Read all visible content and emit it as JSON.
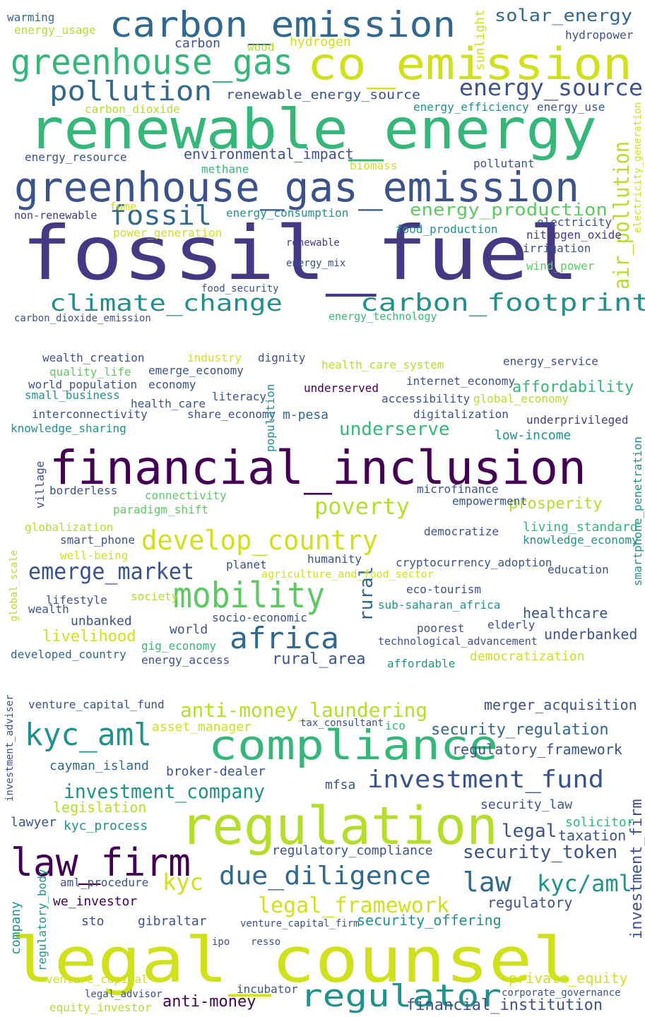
{
  "panels": [
    {
      "words": [
        "carbon_emission",
        "greenhouse_gas",
        "co_emission",
        "pollution",
        "energy_source",
        "renewable_energy",
        "greenhouse_gas_emission",
        "fossil",
        "energy_production",
        "fossil_fuel",
        "climate_change",
        "carbon_footprint",
        "air_pollution",
        "solar_energy",
        "renewable_energy_source",
        "energy_resource",
        "environmental_impact",
        "energy_consumption",
        "methane",
        "power_generation",
        "non-renewable",
        "energy_efficiency",
        "energy_use",
        "hydropower",
        "energy_usage",
        "warming",
        "hydrogen",
        "carbon",
        "carbon_dioxide",
        "biomass",
        "pollutant",
        "electricity",
        "nitrogen_oxide",
        "irrigation",
        "wind_power",
        "food_production",
        "renewable",
        "energy_mix",
        "food_security",
        "carbon_dioxide_emission",
        "energy_technology",
        "fume",
        "wood",
        "sunlight",
        "electricity_generation"
      ]
    },
    {
      "words": [
        "financial_inclusion",
        "develop_country",
        "mobility",
        "emerge_market",
        "africa",
        "poverty",
        "prosperity",
        "affordability",
        "underserve",
        "rural_area",
        "rural",
        "livelihood",
        "unbanked",
        "underbanked",
        "healthcare",
        "developed_country",
        "energy_access",
        "gig_economy",
        "democratization",
        "affordable",
        "technological_advancement",
        "cryptocurrency_adoption",
        "living_standard",
        "knowledge_economy",
        "wealth_creation",
        "quality_life",
        "world_population",
        "economy",
        "small_business",
        "interconnectivity",
        "health_care",
        "share_economy",
        "knowledge_sharing",
        "emerge_economy",
        "industry",
        "dignity",
        "health_care_system",
        "internet_economy",
        "energy_service",
        "global_economy",
        "underprivileged",
        "low-income",
        "digitalization",
        "accessibility",
        "m-pesa",
        "underserved",
        "literacy",
        "connectivity",
        "paradigm_shift",
        "smart_phone",
        "well-being",
        "humanity",
        "planet",
        "education",
        "eco-tourism",
        "sub-saharan_africa",
        "poorest",
        "elderly",
        "microfinance",
        "empowerment",
        "democratize",
        "borderless",
        "globalization",
        "lifestyle",
        "wealth",
        "society",
        "socio-economic",
        "world",
        "agriculture_and_food_sector",
        "population",
        "smartphone_penetration",
        "global_scale",
        "village"
      ]
    },
    {
      "words": [
        "legal_counsel",
        "regulation",
        "compliance",
        "law_firm",
        "kyc_aml",
        "investment_fund",
        "investment_company",
        "due_diligence",
        "regulator",
        "law",
        "kyc/aml",
        "anti-money_laundering",
        "legal_framework",
        "security_token",
        "security_regulation",
        "regulatory_framework",
        "merger_acquisition",
        "venture_capital_fund",
        "security_law",
        "solicitor",
        "taxation",
        "legal",
        "regulatory_compliance",
        "legislation",
        "lawyer",
        "kyc_process",
        "asset_manager",
        "cayman_island",
        "broker-dealer",
        "mfsa",
        "kyc",
        "aml_procedure",
        "we_investor",
        "sto",
        "gibraltar",
        "security_offering",
        "regulatory",
        "private_equity",
        "financial_institution",
        "anti-money",
        "equity_investor",
        "legal_advisor",
        "venture_capital",
        "incubator",
        "resso",
        "ipo",
        "venture_capital_firm",
        "corporate_governance",
        "tax_consultant",
        "ico",
        "company",
        "investment_firm",
        "regulatory_body",
        "investment_adviser"
      ]
    }
  ]
}
